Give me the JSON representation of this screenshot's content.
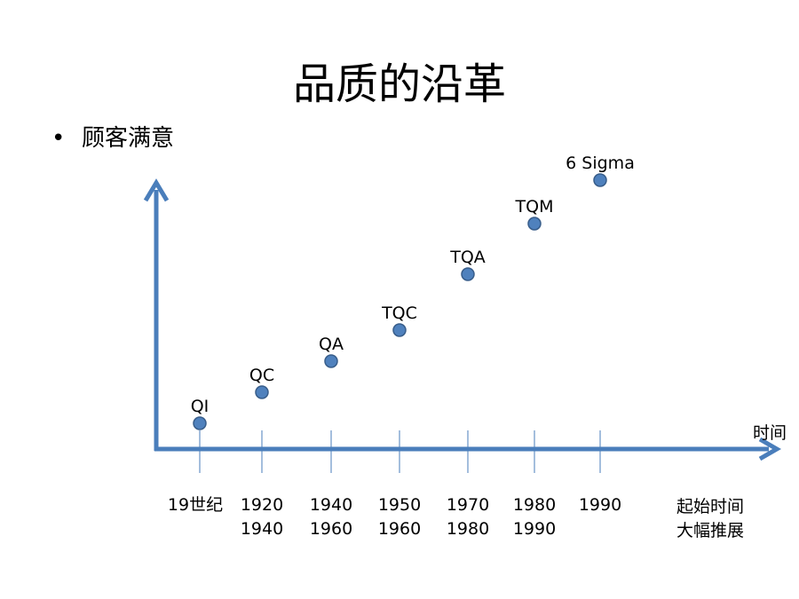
{
  "slide": {
    "title": "品质的沿革",
    "bullet_text": "顾客满意"
  },
  "diagram": {
    "axis_label_x": "时间",
    "line_color": "#4a7ebb",
    "marker_color": "#4f81bd",
    "stages": [
      {
        "label": "QI",
        "period": [
          "19世纪"
        ]
      },
      {
        "label": "QC",
        "period": [
          "1920",
          "1940"
        ]
      },
      {
        "label": "QA",
        "period": [
          "1940",
          "1960"
        ]
      },
      {
        "label": "TQC",
        "period": [
          "1950",
          "1960"
        ]
      },
      {
        "label": "TQA",
        "period": [
          "1970",
          "1980"
        ]
      },
      {
        "label": "TQM",
        "period": [
          "1980",
          "1990"
        ]
      },
      {
        "label": "6 Sigma",
        "period": [
          "1990"
        ]
      }
    ],
    "trailing_period": [
      "起始时间",
      "大幅推展"
    ]
  }
}
